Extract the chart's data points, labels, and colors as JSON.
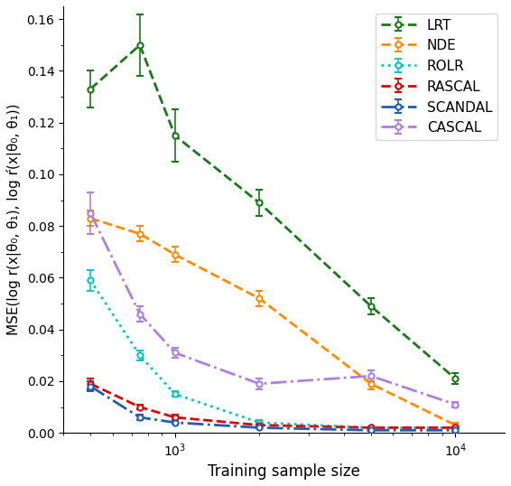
{
  "title": "",
  "xlabel": "Training sample size",
  "ylabel": "MSE(log r(x|θ₀, θ₁), log ŕ(x|θ₀, θ₁))",
  "xscale": "log",
  "xlim": [
    400,
    15000
  ],
  "ylim": [
    0.0,
    0.165
  ],
  "x_ticks": [
    1000,
    10000
  ],
  "series": [
    {
      "label": "LRT",
      "color": "#1a7a1a",
      "linestyle": "--",
      "marker": "o",
      "markersize": 4.5,
      "linewidth": 2.0,
      "x": [
        500,
        750,
        1000,
        2000,
        5000,
        10000
      ],
      "y": [
        0.133,
        0.15,
        0.115,
        0.089,
        0.049,
        0.021
      ],
      "yerr": [
        0.007,
        0.012,
        0.01,
        0.005,
        0.003,
        0.002
      ]
    },
    {
      "label": "NDE",
      "color": "#ff8c00",
      "linestyle": "--",
      "marker": "o",
      "markersize": 4.5,
      "linewidth": 2.0,
      "x": [
        500,
        750,
        1000,
        2000,
        5000,
        10000
      ],
      "y": [
        0.083,
        0.077,
        0.069,
        0.052,
        0.019,
        0.003
      ],
      "yerr": [
        0.003,
        0.003,
        0.003,
        0.003,
        0.002,
        0.001
      ]
    },
    {
      "label": "ROLR",
      "color": "#00c8c8",
      "linestyle": ":",
      "marker": "o",
      "markersize": 4.5,
      "linewidth": 2.0,
      "x": [
        500,
        750,
        1000,
        2000,
        5000,
        10000
      ],
      "y": [
        0.059,
        0.03,
        0.015,
        0.004,
        0.002,
        0.002
      ],
      "yerr": [
        0.004,
        0.002,
        0.001,
        0.001,
        0.0005,
        0.0003
      ]
    },
    {
      "label": "RASCAL",
      "color": "#e00000",
      "linestyle": "--",
      "marker": "o",
      "markersize": 4.5,
      "linewidth": 2.0,
      "x": [
        500,
        750,
        1000,
        2000,
        5000,
        10000
      ],
      "y": [
        0.019,
        0.01,
        0.006,
        0.003,
        0.002,
        0.002
      ],
      "yerr": [
        0.002,
        0.001,
        0.001,
        0.0005,
        0.0003,
        0.0002
      ]
    },
    {
      "label": "SCANDAL",
      "color": "#1e5eb5",
      "linestyle": "-.",
      "marker": "o",
      "markersize": 4.5,
      "linewidth": 2.0,
      "x": [
        500,
        750,
        1000,
        2000,
        5000,
        10000
      ],
      "y": [
        0.018,
        0.006,
        0.004,
        0.002,
        0.001,
        0.001
      ],
      "yerr": [
        0.002,
        0.001,
        0.0005,
        0.0003,
        0.0002,
        0.0001
      ]
    },
    {
      "label": "CASCAL",
      "color": "#b07fe0",
      "linestyle": "-.",
      "marker": "o",
      "markersize": 4.5,
      "linewidth": 2.0,
      "x": [
        500,
        750,
        1000,
        2000,
        5000,
        10000
      ],
      "y": [
        0.085,
        0.046,
        0.031,
        0.019,
        0.022,
        0.011
      ],
      "yerr": [
        0.008,
        0.003,
        0.002,
        0.002,
        0.002,
        0.001
      ]
    }
  ],
  "legend_loc": "upper right",
  "figsize": [
    5.66,
    5.38
  ],
  "dpi": 100
}
